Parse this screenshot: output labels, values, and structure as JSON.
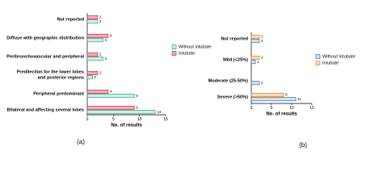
{
  "chart_data": [
    {
      "type": "bar",
      "orientation": "horizontal",
      "caption": "(a)",
      "xlabel": "No. of results",
      "categories": [
        "Not reported",
        "Diffuse with geographic distribution",
        "Peribronchovascular and peripheral",
        "Predilection for the lower lobes\nand posterior regions",
        "Peripheral predominant",
        "Bilateral and affecting several lobes"
      ],
      "series": [
        {
          "name": "Without intubate",
          "color": "#c9f1ea",
          "edge": "#2a8a6a",
          "values": [
            2,
            3,
            3,
            1,
            9,
            13
          ]
        },
        {
          "name": "Intubate",
          "color": "#f6a9b4",
          "edge": "#b0283c",
          "values": [
            2,
            4,
            2,
            2,
            4,
            9
          ]
        }
      ],
      "xlim": [
        0,
        15
      ],
      "xticks": [
        0,
        5,
        10,
        15
      ],
      "legend": "right"
    },
    {
      "type": "bar",
      "orientation": "horizontal",
      "caption": "(b)",
      "xlabel": "No. of results",
      "categories": [
        "Not reported",
        "Mild (<25%)",
        "Moderate (25-50%)",
        "Severe (>50%)"
      ],
      "series": [
        {
          "name": "Without Intubate",
          "color": "#cfe2f6",
          "edge": "#2b5f9e",
          "values": [
            2,
            1,
            2,
            11
          ]
        },
        {
          "name": "Intubate",
          "color": "#fcd9b2",
          "edge": "#c9761c",
          "values": [
            2,
            2,
            null,
            8
          ]
        }
      ],
      "xlim": [
        0,
        15
      ],
      "xticks": [
        0,
        5,
        10,
        15
      ],
      "legend": "right"
    }
  ]
}
